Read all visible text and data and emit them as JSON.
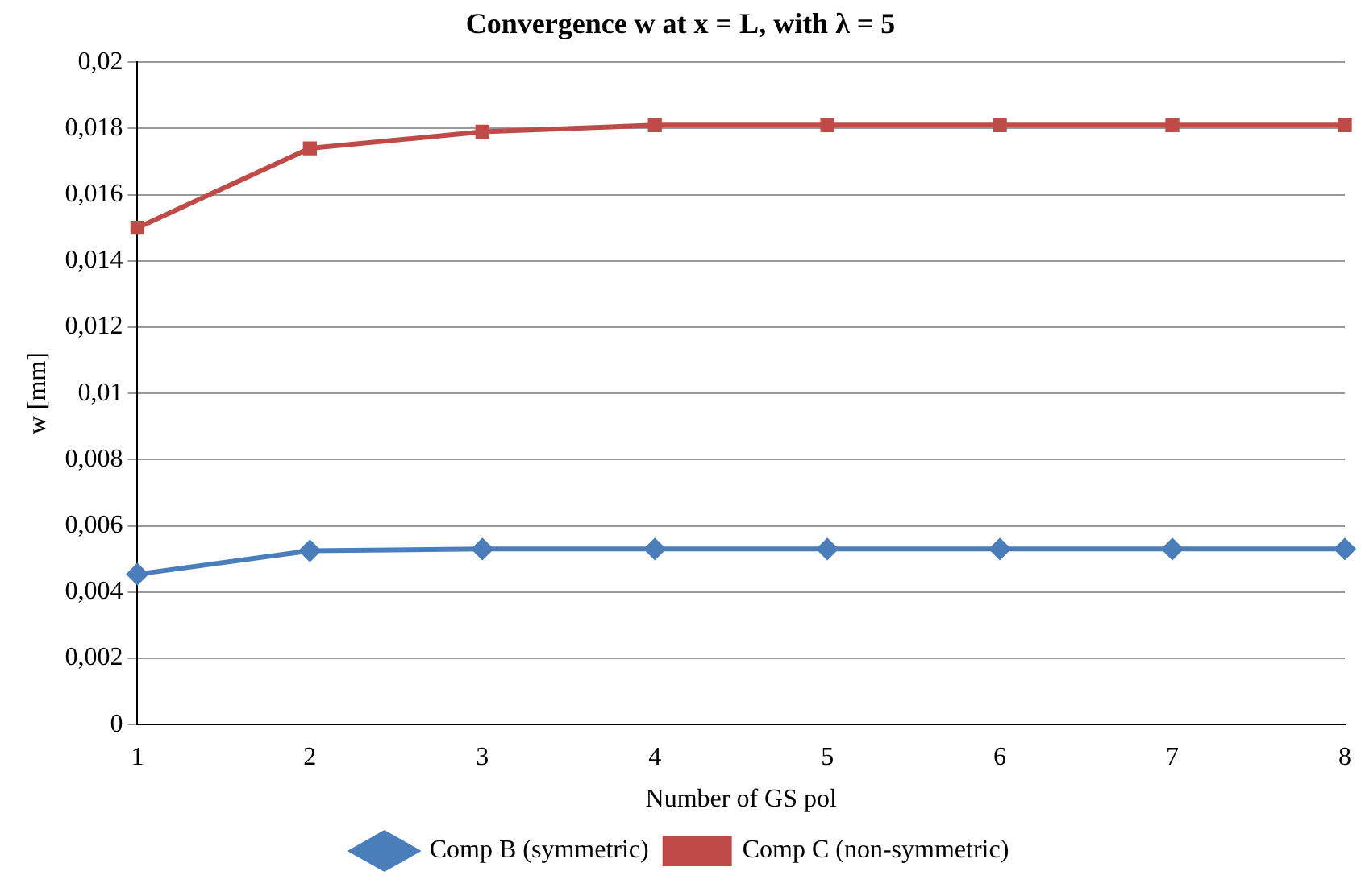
{
  "chart_data": {
    "type": "line",
    "title": "Convergence w at x = L, with λ = 5",
    "xlabel": "Number of GS pol",
    "ylabel": "w [mm]",
    "categories": [
      "1",
      "2",
      "3",
      "4",
      "5",
      "6",
      "7",
      "8"
    ],
    "series": [
      {
        "name": "Comp B (symmetric)",
        "color": "#4a7ebb",
        "marker": "diamond",
        "values": [
          0.00454,
          0.00525,
          0.0053,
          0.0053,
          0.0053,
          0.0053,
          0.0053,
          0.0053
        ]
      },
      {
        "name": "Comp C (non-symmetric)",
        "color": "#be4b48",
        "marker": "square",
        "values": [
          0.015,
          0.0174,
          0.0179,
          0.0181,
          0.0181,
          0.0181,
          0.0181,
          0.0181
        ]
      }
    ],
    "ylim": [
      0,
      0.02
    ],
    "yticks": [
      {
        "value": 0,
        "label": "0"
      },
      {
        "value": 0.002,
        "label": "0,002"
      },
      {
        "value": 0.004,
        "label": "0,004"
      },
      {
        "value": 0.006,
        "label": "0,006"
      },
      {
        "value": 0.008,
        "label": "0,008"
      },
      {
        "value": 0.01,
        "label": "0,01"
      },
      {
        "value": 0.012,
        "label": "0,012"
      },
      {
        "value": 0.014,
        "label": "0,014"
      },
      {
        "value": 0.016,
        "label": "0,016"
      },
      {
        "value": 0.018,
        "label": "0,018"
      },
      {
        "value": 0.02,
        "label": "0,02"
      }
    ],
    "grid": "y",
    "legend": "bottom"
  }
}
